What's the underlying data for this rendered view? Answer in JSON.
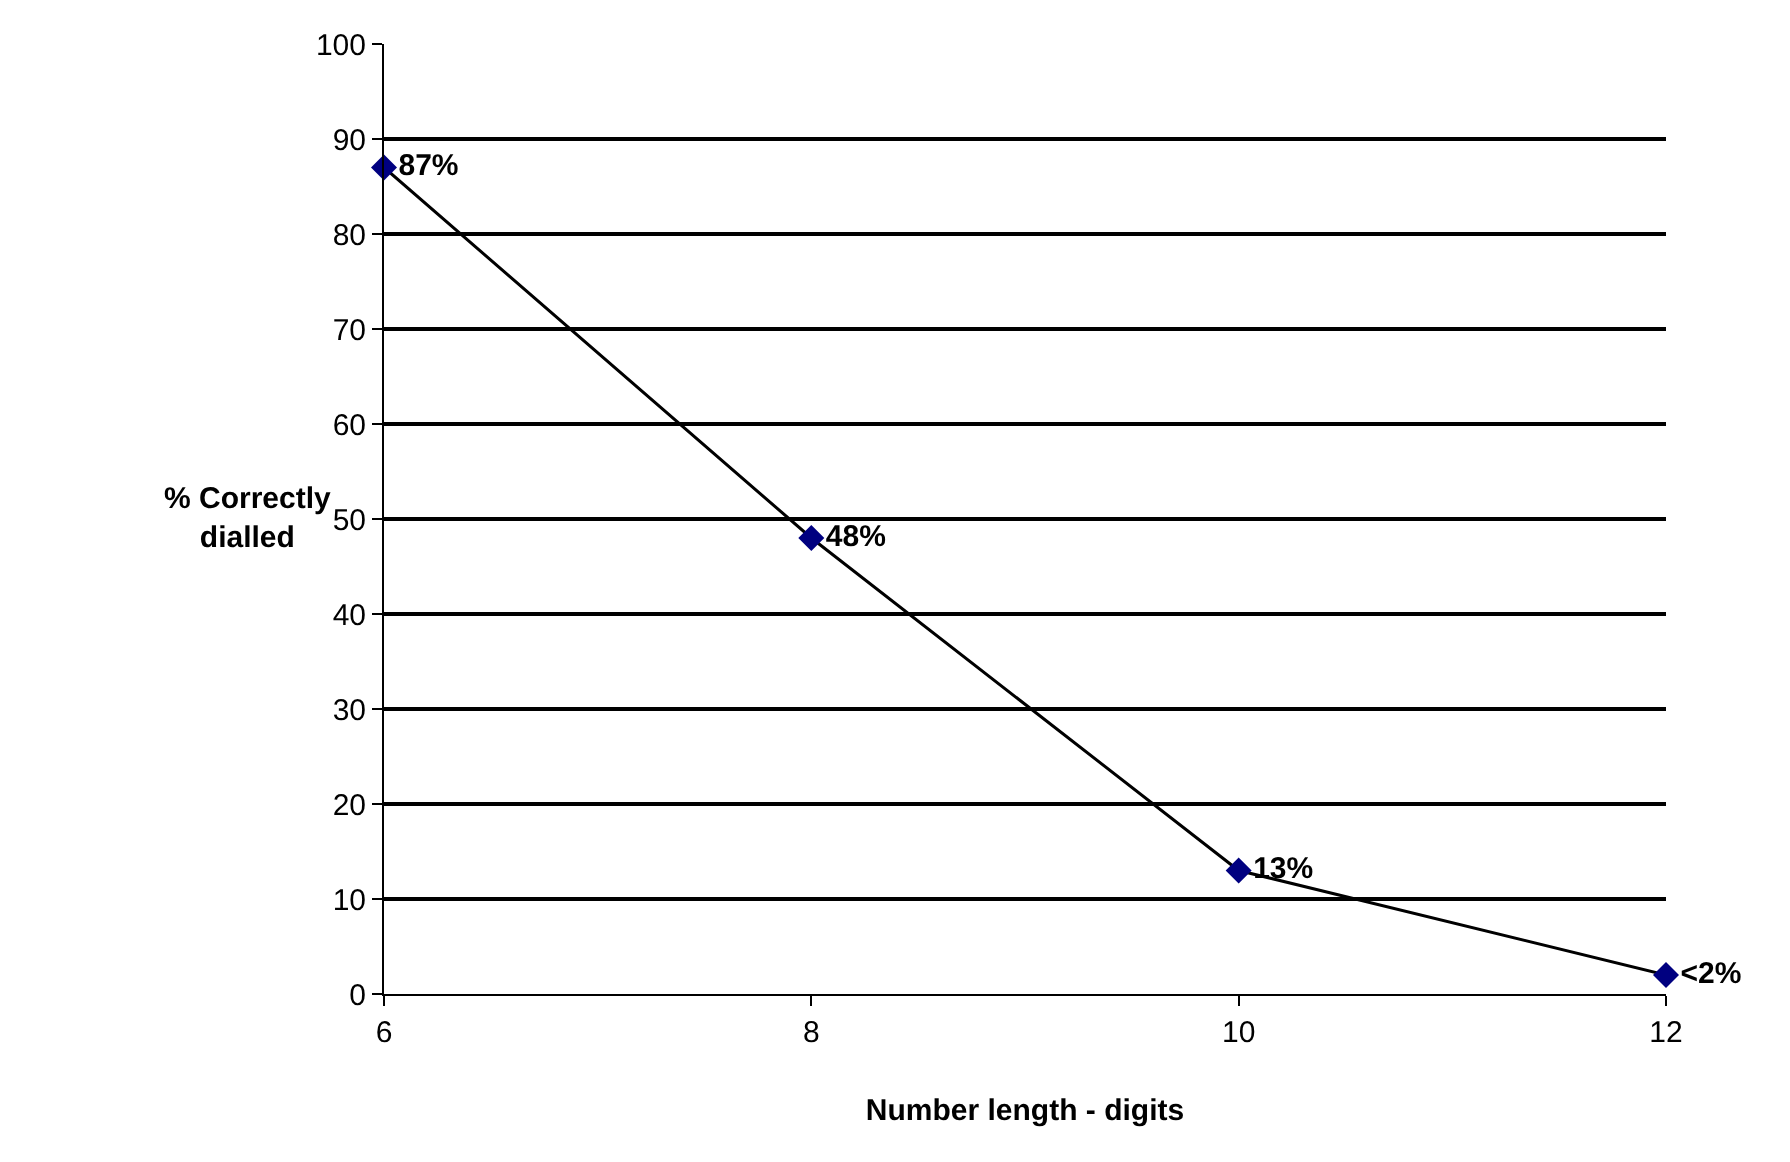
{
  "chart_data": {
    "type": "line",
    "xlabel": "Number length - digits",
    "ylabel": "% Correctly dialled",
    "x": [
      6,
      8,
      10,
      12
    ],
    "series": [
      {
        "color": "#000080",
        "values": [
          87,
          48,
          13,
          2
        ],
        "value_labels": [
          "87%",
          "48%",
          "13%",
          "<2%"
        ]
      }
    ],
    "xlim": [
      6,
      12
    ],
    "xticks": [
      6,
      8,
      10,
      12
    ],
    "ylim": [
      0,
      100
    ],
    "yticks": [
      0,
      10,
      20,
      30,
      40,
      50,
      60,
      70,
      80,
      90,
      100
    ],
    "grid": "y",
    "legend": false,
    "marker": "diamond",
    "line_style": "solid"
  }
}
